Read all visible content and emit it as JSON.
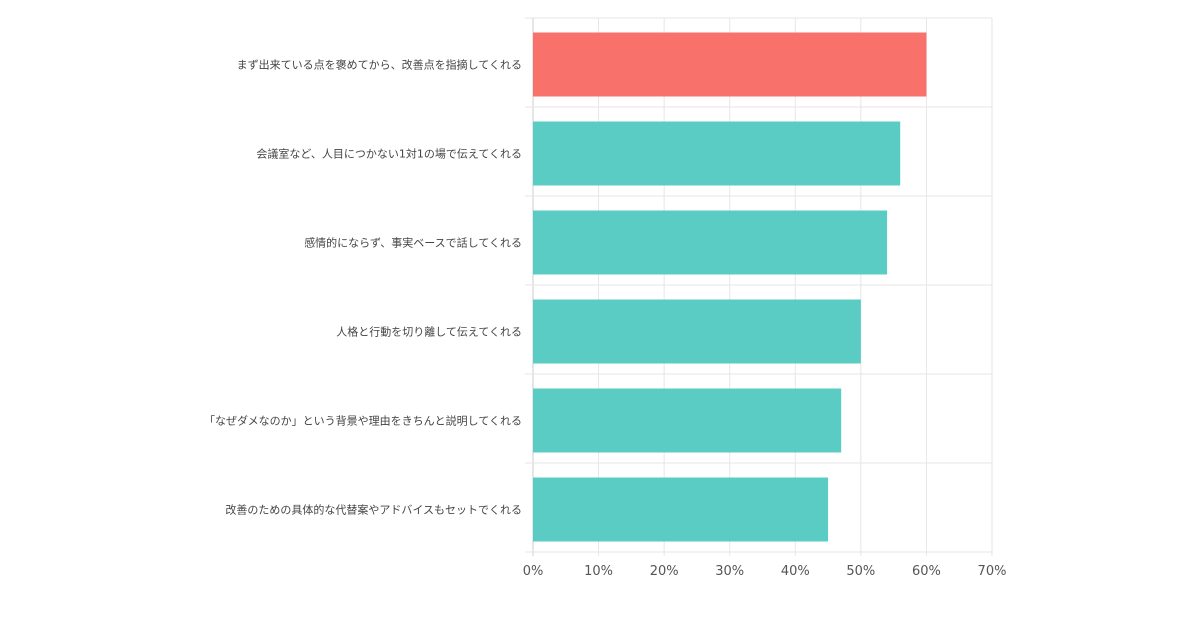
{
  "chart_data": {
    "type": "bar",
    "orientation": "horizontal",
    "title": "",
    "xlabel": "",
    "ylabel": "",
    "categories": [
      "まず出来ている点を褒めてから、改善点を指摘してくれる",
      "会議室など、人目につかない1対1の場で伝えてくれる",
      "感情的にならず、事実ベースで話してくれる",
      "人格と行動を切り離して伝えてくれる",
      "「なぜダメなのか」という背景や理由をきちんと説明してくれる",
      "改善のための具体的な代替案やアドバイスもセットでくれる"
    ],
    "values": [
      60,
      56,
      54,
      50,
      47,
      45
    ],
    "bar_colors": [
      "#f8716b",
      "#5accc3",
      "#5accc3",
      "#5accc3",
      "#5accc3",
      "#5accc3"
    ],
    "xlim": [
      0,
      70
    ],
    "x_ticks": [
      0,
      10,
      20,
      30,
      40,
      50,
      60,
      70
    ],
    "x_tick_labels": [
      "0%",
      "10%",
      "20%",
      "30%",
      "40%",
      "50%",
      "60%",
      "70%"
    ],
    "grid": true,
    "legend": "none"
  }
}
